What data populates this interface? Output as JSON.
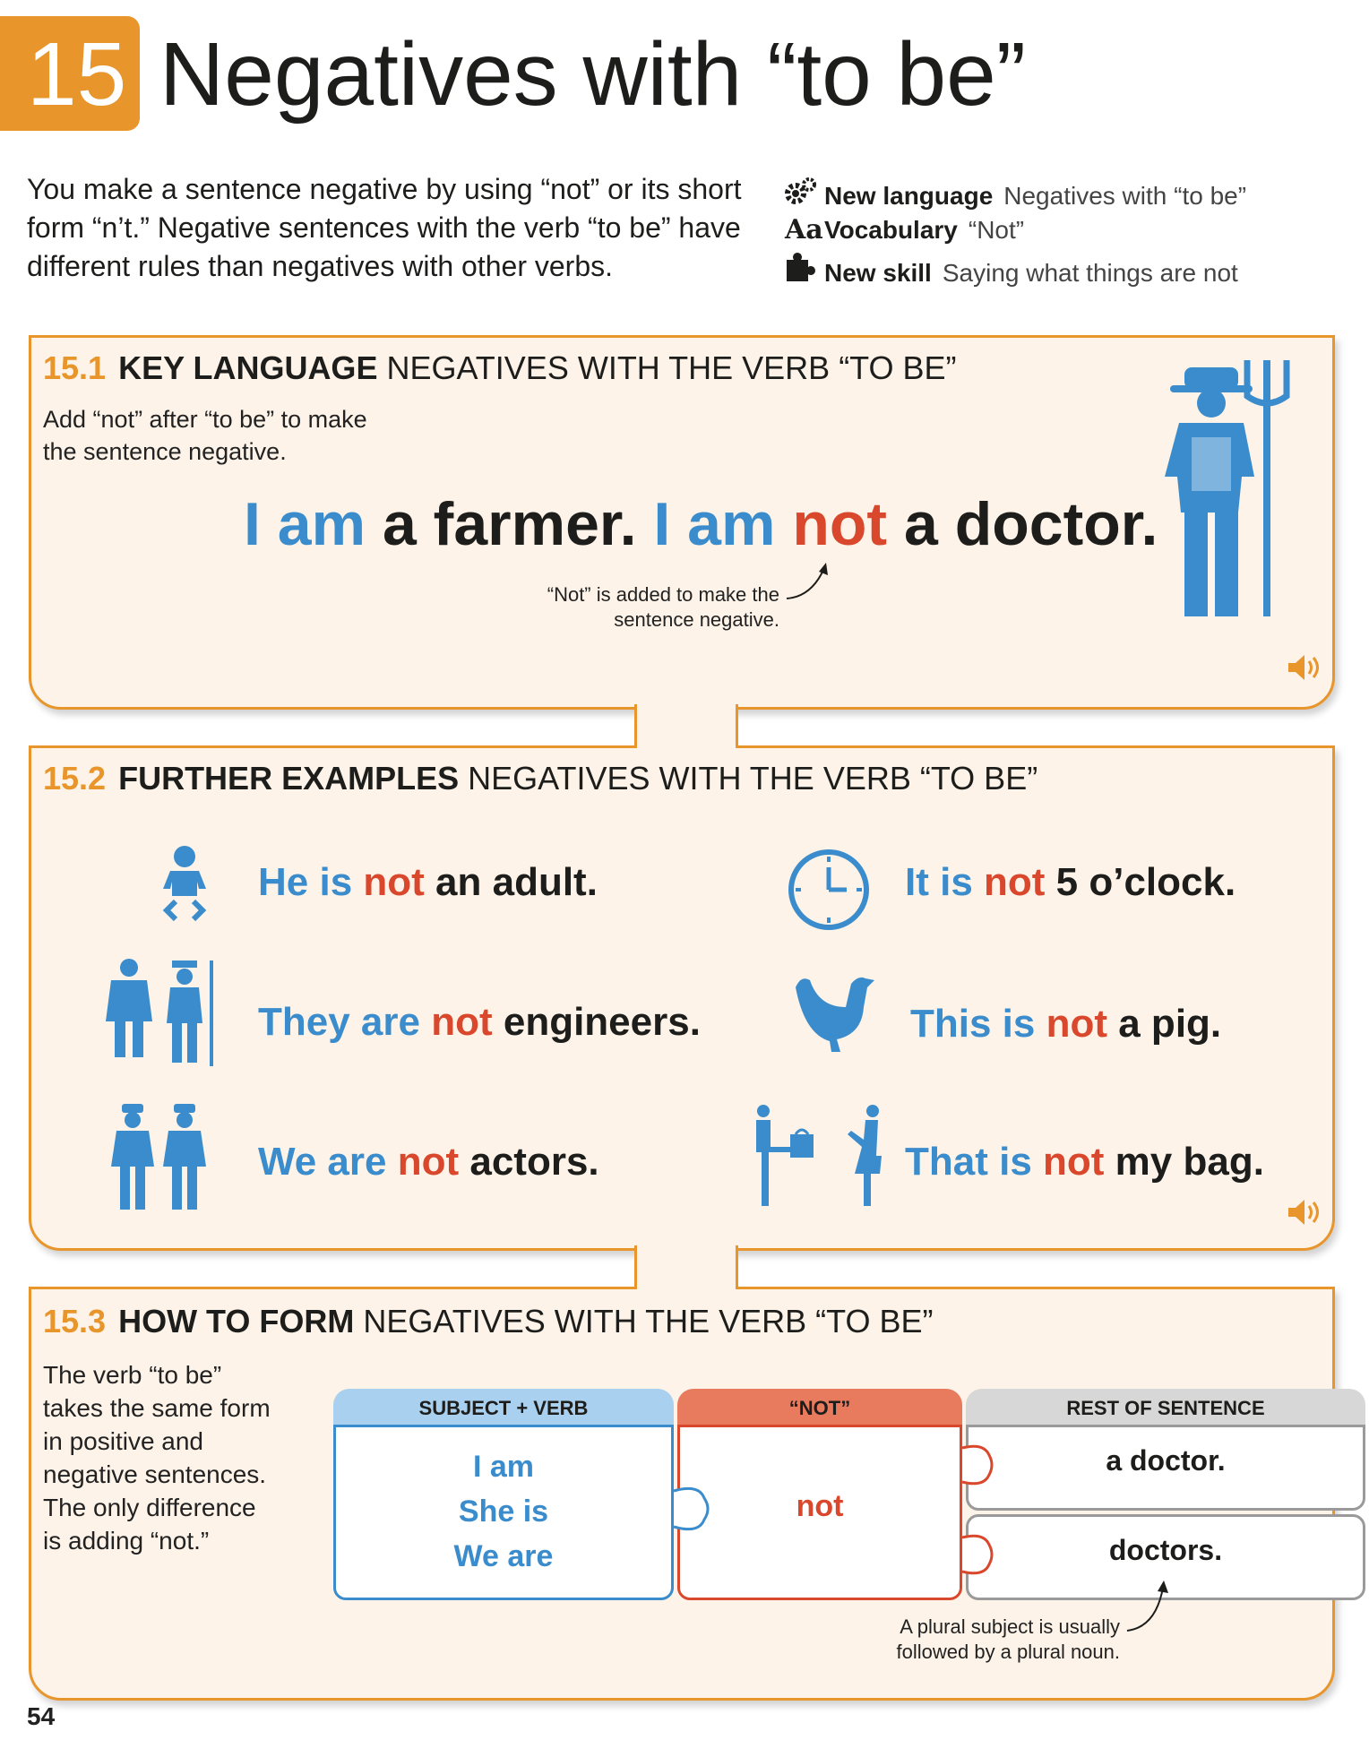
{
  "header": {
    "chapter_number": "15",
    "title": "Negatives with “to be”",
    "intro": "You make a sentence negative by using “not” or its short form “n’t.” Negative sentences with the verb “to be” have different rules than negatives with other verbs."
  },
  "meta": [
    {
      "icon": "gears-icon",
      "label": "New language",
      "value": "Negatives with “to be”"
    },
    {
      "icon": "aa-icon",
      "icon_text": "Aa",
      "label": "Vocabulary",
      "value": "“Not”"
    },
    {
      "icon": "puzzle-icon",
      "label": "New skill",
      "value": "Saying what things are not"
    }
  ],
  "section1": {
    "number": "15.1",
    "heading_bold": "KEY LANGUAGE",
    "heading_rest": "NEGATIVES WITH THE VERB “TO BE”",
    "note": "Add “not” after “to be” to make the sentence negative.",
    "sentence": {
      "p1": "I am",
      "p2": " a farmer. ",
      "p3": "I am",
      "p4": " not",
      "p5": " a doctor."
    },
    "annotation": "“Not” is added to make the sentence negative.",
    "annotation_line1": "“Not” is added to make the",
    "annotation_line2": "sentence negative."
  },
  "section2": {
    "number": "15.2",
    "heading_bold": "FURTHER EXAMPLES",
    "heading_rest": "NEGATIVES WITH THE VERB “TO BE”",
    "examples": [
      {
        "subject": "He is",
        "not": " not",
        "rest": " an adult.",
        "icon": "baby-icon"
      },
      {
        "subject": "It is",
        "not": " not",
        "rest": " 5 o’clock.",
        "icon": "clock-icon"
      },
      {
        "subject": "They are",
        "not": " not",
        "rest": " engineers.",
        "icon": "doctor-farmer-icon"
      },
      {
        "subject": "This is",
        "not": " not",
        "rest": " a pig.",
        "icon": "chicken-icon"
      },
      {
        "subject": "We are",
        "not": " not",
        "rest": " actors.",
        "icon": "police-officers-icon"
      },
      {
        "subject": "That is",
        "not": " not",
        "rest": " my bag.",
        "icon": "bag-exchange-icon"
      }
    ]
  },
  "section3": {
    "number": "15.3",
    "heading_bold": "HOW TO FORM",
    "heading_rest": "NEGATIVES WITH THE VERB “TO BE”",
    "note_lines": [
      "The verb “to be”",
      "takes the same form",
      "in positive and",
      "negative sentences.",
      "The only difference",
      "is adding “not.”"
    ],
    "columns": {
      "subject_header": "SUBJECT + VERB",
      "not_header": "“NOT”",
      "rest_header": "REST OF SENTENCE"
    },
    "subjects": [
      "I am",
      "She is",
      "We are"
    ],
    "not_word": "not",
    "rest": [
      "a doctor.",
      "doctors."
    ],
    "annotation_line1": "A plural subject is usually",
    "annotation_line2": "followed by a plural noun."
  },
  "page_number": "54",
  "colors": {
    "accent": "#e8952c",
    "blue": "#3a8ccc",
    "red": "#d9482c",
    "panel_bg": "#fdf3e8",
    "grey": "#9a9a9a"
  }
}
